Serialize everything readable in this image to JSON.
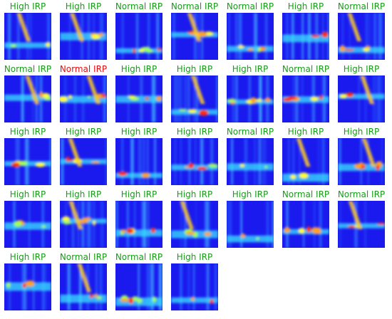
{
  "colors": {
    "correct": "#1a9a1a",
    "incorrect": "#e01010",
    "background_blue": "#1010e8"
  },
  "panels": [
    {
      "label": "High IRP",
      "status": "correct"
    },
    {
      "label": "High IRP",
      "status": "correct"
    },
    {
      "label": "Normal IRP",
      "status": "correct"
    },
    {
      "label": "Normal IRP",
      "status": "correct"
    },
    {
      "label": "Normal IRP",
      "status": "correct"
    },
    {
      "label": "High IRP",
      "status": "correct"
    },
    {
      "label": "Normal IRP",
      "status": "correct"
    },
    {
      "label": "Normal IRP",
      "status": "correct"
    },
    {
      "label": "Normal IRP",
      "status": "incorrect"
    },
    {
      "label": "High IRP",
      "status": "correct"
    },
    {
      "label": "High IRP",
      "status": "correct"
    },
    {
      "label": "High IRP",
      "status": "correct"
    },
    {
      "label": "Normal IRP",
      "status": "correct"
    },
    {
      "label": "High IRP",
      "status": "correct"
    },
    {
      "label": "High IRP",
      "status": "correct"
    },
    {
      "label": "High IRP",
      "status": "correct"
    },
    {
      "label": "High IRP",
      "status": "correct"
    },
    {
      "label": "High IRP",
      "status": "correct"
    },
    {
      "label": "Normal IRP",
      "status": "correct"
    },
    {
      "label": "High IRP",
      "status": "correct"
    },
    {
      "label": "High IRP",
      "status": "correct"
    },
    {
      "label": "High IRP",
      "status": "correct"
    },
    {
      "label": "High IRP",
      "status": "correct"
    },
    {
      "label": "High IRP",
      "status": "correct"
    },
    {
      "label": "High IRP",
      "status": "correct"
    },
    {
      "label": "High IRP",
      "status": "correct"
    },
    {
      "label": "Normal IRP",
      "status": "correct"
    },
    {
      "label": "Normal IRP",
      "status": "correct"
    },
    {
      "label": "High IRP",
      "status": "correct"
    },
    {
      "label": "Normal IRP",
      "status": "correct"
    },
    {
      "label": "Normal IRP",
      "status": "correct"
    },
    {
      "label": "High IRP",
      "status": "correct"
    }
  ]
}
